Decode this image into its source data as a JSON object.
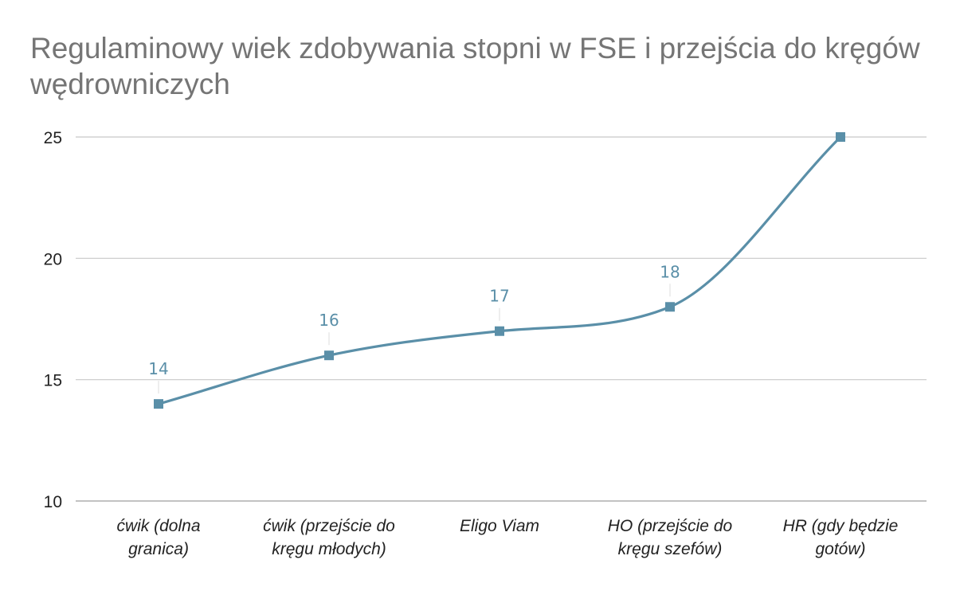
{
  "chart_data": {
    "type": "line",
    "title": "Regulaminowy wiek zdobywania stopni w FSE i przejścia do kręgów wędrowniczych",
    "xlabel": "",
    "ylabel": "",
    "categories": [
      [
        "ćwik (dolna",
        "granica)"
      ],
      [
        "ćwik (przejście do",
        "kręgu młodych)"
      ],
      [
        "Eligo Viam"
      ],
      [
        "HO (przejście do",
        "kręgu szefów)"
      ],
      [
        "HR (gdy będzie",
        "gotów)"
      ]
    ],
    "series": [
      {
        "values": [
          14,
          16,
          17,
          18,
          25
        ],
        "data_labels": [
          "14",
          "16",
          "17",
          "18",
          ""
        ]
      }
    ],
    "ylim": [
      10,
      25
    ],
    "yticks": [
      10,
      15,
      20,
      25
    ],
    "grid": true,
    "smooth": true,
    "marker": "square",
    "legend": "none",
    "colors": {
      "line": "#5a8fa8",
      "grid": "#c8c8c8",
      "title": "#757575"
    }
  }
}
